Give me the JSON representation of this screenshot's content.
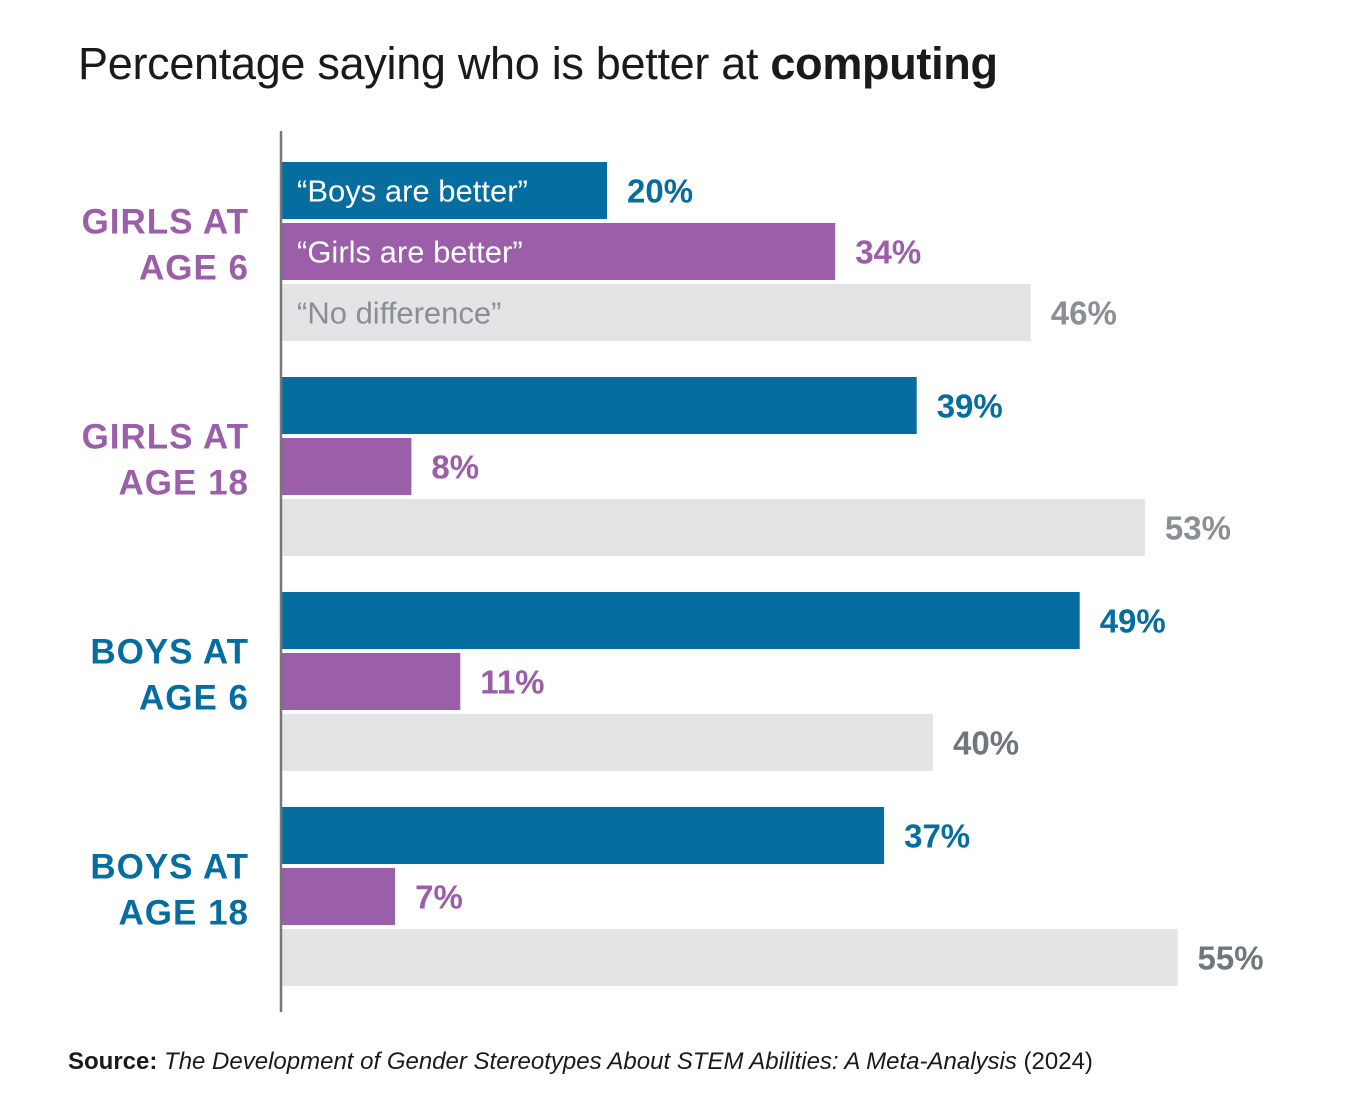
{
  "title": {
    "prefix": "Percentage saying who is better at ",
    "emphasis": "computing"
  },
  "colors": {
    "boys_better": "#066da1",
    "girls_better": "#9b5ea8",
    "no_difference": "#e2e4e6",
    "no_difference_label": "#8a8f93",
    "no_difference_label_alt": "#6f777d",
    "girls_group": "#9b5ea8",
    "boys_group": "#066da1",
    "axis": "#777777"
  },
  "chart_data": {
    "type": "bar",
    "orientation": "horizontal",
    "categories": [
      "GIRLS AT AGE 6",
      "GIRLS AT AGE 18",
      "BOYS AT AGE 6",
      "BOYS AT AGE 18"
    ],
    "category_lines": [
      [
        "GIRLS AT",
        "AGE 6"
      ],
      [
        "GIRLS AT",
        "AGE 18"
      ],
      [
        "BOYS AT",
        "AGE 6"
      ],
      [
        "BOYS AT",
        "AGE 18"
      ]
    ],
    "series": [
      {
        "name": "“Boys are better”",
        "values": [
          20,
          39,
          49,
          37
        ]
      },
      {
        "name": "“Girls are better”",
        "values": [
          34,
          8,
          11,
          7
        ]
      },
      {
        "name": "“No difference”",
        "values": [
          46,
          53,
          40,
          55
        ]
      }
    ],
    "value_labels": [
      [
        "20%",
        "34%",
        "46%"
      ],
      [
        "39%",
        "8%",
        "53%"
      ],
      [
        "49%",
        "11%",
        "40%"
      ],
      [
        "37%",
        "7%",
        "55%"
      ]
    ],
    "xlim": [
      0,
      100
    ],
    "grid": false,
    "legend": "inside first group bars"
  },
  "source": {
    "label": "Source:",
    "title": "The Development of Gender Stereotypes About STEM Abilities: A Meta-Analysis",
    "year": "(2024)"
  }
}
